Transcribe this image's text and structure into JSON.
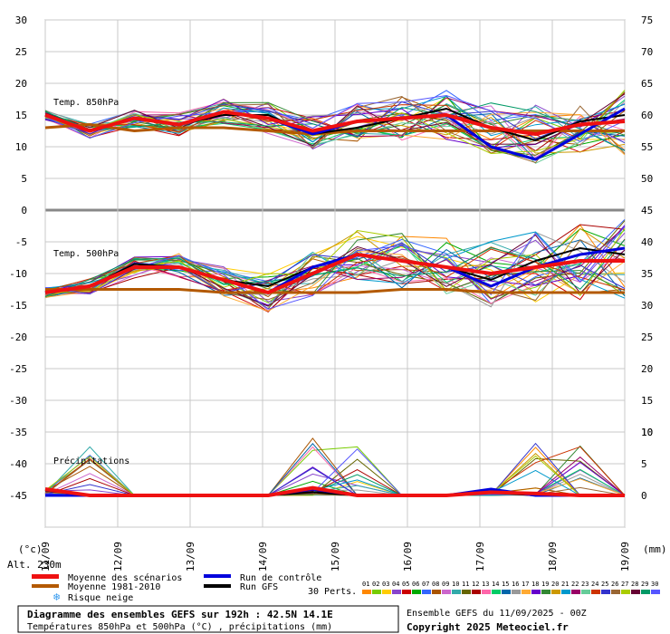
{
  "chart_data": {
    "type": "line",
    "dates": [
      "11/09",
      "12/09",
      "13/09",
      "14/09",
      "15/09",
      "16/09",
      "17/09",
      "18/09",
      "19/09"
    ],
    "left_axis": {
      "min": -45,
      "max": 30,
      "ticks": [
        30,
        25,
        20,
        15,
        10,
        5,
        0,
        -5,
        -10,
        -15,
        -20,
        -25,
        -30,
        -35,
        -40,
        -45
      ],
      "unit": "(°c)"
    },
    "right_axis_temp850": {
      "ticks": [
        75,
        70,
        65,
        60,
        55,
        50,
        45
      ]
    },
    "right_axis_temp500": {
      "ticks": [
        40,
        35,
        30,
        25,
        20,
        15,
        10
      ]
    },
    "right_axis_precip": {
      "ticks": [
        10,
        5,
        0
      ],
      "unit": "(mm)"
    },
    "panels": {
      "t850": {
        "label": "Temp. 850hPa",
        "mean": [
          15,
          12.5,
          14.5,
          13.5,
          15.5,
          14.5,
          12.5,
          14,
          14.5,
          15,
          13,
          12,
          13.5,
          14
        ],
        "climatology": [
          13,
          13.5,
          12.5,
          13,
          13,
          12.5,
          12,
          12.5,
          12.5,
          12.5,
          12.5,
          12.5,
          12.5,
          12.5
        ],
        "control": [
          15,
          12.5,
          14.5,
          13.5,
          15.5,
          14.5,
          12,
          14,
          14.5,
          15,
          10,
          8,
          12,
          16
        ],
        "gfs": [
          15,
          12.5,
          14.5,
          13.5,
          15,
          15,
          12,
          13,
          14.5,
          16,
          13,
          11,
          14,
          15
        ]
      },
      "t500": {
        "label": "Temp. 500hPa",
        "mean": [
          -13,
          -12,
          -9,
          -9,
          -11,
          -13,
          -10,
          -7,
          -8,
          -9,
          -10,
          -9,
          -8,
          -8
        ],
        "climatology": [
          -12.5,
          -12.5,
          -12.5,
          -12.5,
          -13,
          -13,
          -13,
          -13,
          -12.5,
          -12.5,
          -13,
          -13,
          -13,
          -13
        ],
        "control": [
          -13,
          -12,
          -9,
          -9,
          -11,
          -13,
          -9,
          -7,
          -8,
          -9,
          -12,
          -9,
          -7,
          -6
        ],
        "gfs": [
          -13,
          -12,
          -8.5,
          -9,
          -11,
          -12,
          -9,
          -7,
          -8,
          -9,
          -11,
          -8,
          -6,
          -7
        ]
      },
      "precip": {
        "label": "Précipitations",
        "mean": [
          1,
          0,
          0,
          0,
          0,
          0,
          1.2,
          0,
          0,
          0,
          0.5,
          0.3,
          0,
          0
        ],
        "control": [
          0,
          0,
          0,
          0,
          0,
          0,
          1,
          0,
          0,
          0,
          1,
          0,
          0,
          0
        ],
        "gfs": [
          0,
          0,
          0,
          0,
          0,
          0,
          0.5,
          0,
          0,
          0,
          0.5,
          0,
          0,
          0
        ]
      }
    },
    "altitude_label": "Alt. 230m",
    "legend": {
      "mean": "Moyenne des scénarios",
      "climatology": "Moyenne 1981-2010",
      "snow": "Risque neige",
      "control": "Run de contrôle",
      "gfs": "Run GFS",
      "perts": "30 Perts."
    },
    "pert_numbers": [
      "01",
      "02",
      "03",
      "04",
      "05",
      "06",
      "07",
      "08",
      "09",
      "10",
      "11",
      "12",
      "13",
      "14",
      "15",
      "16",
      "17",
      "18",
      "19",
      "20",
      "21",
      "22",
      "23",
      "24",
      "25",
      "26",
      "27",
      "28",
      "29",
      "30"
    ],
    "title": "Diagramme des ensembles GEFS sur 192h : 42.5N 14.1E",
    "subtitle": "Températures 850hPa et 500hPa (°C) , précipitations (mm)",
    "run_info": "Ensemble GEFS du 11/09/2025 - 00Z",
    "copyright": "Copyright 2025 Meteociel.fr",
    "colors": {
      "mean": "#ee1111",
      "climatology": "#b35900",
      "control": "#0000dd",
      "gfs": "#000000",
      "grid": "#c8c8c8",
      "separator": "#888888",
      "members": [
        "#ff8800",
        "#77cc00",
        "#ffcc00",
        "#8844cc",
        "#cc0000",
        "#00aa00",
        "#3366ff",
        "#aa5500",
        "#cc66cc",
        "#33aaaa",
        "#666600",
        "#aa0000",
        "#ff66aa",
        "#00cc66",
        "#0066aa",
        "#999999",
        "#ffaa33",
        "#6600cc",
        "#338833",
        "#cc9900",
        "#0099cc",
        "#990066",
        "#66cc99",
        "#cc3300",
        "#3333cc",
        "#996633",
        "#aacc00",
        "#660033",
        "#009966",
        "#5555ff"
      ]
    }
  }
}
